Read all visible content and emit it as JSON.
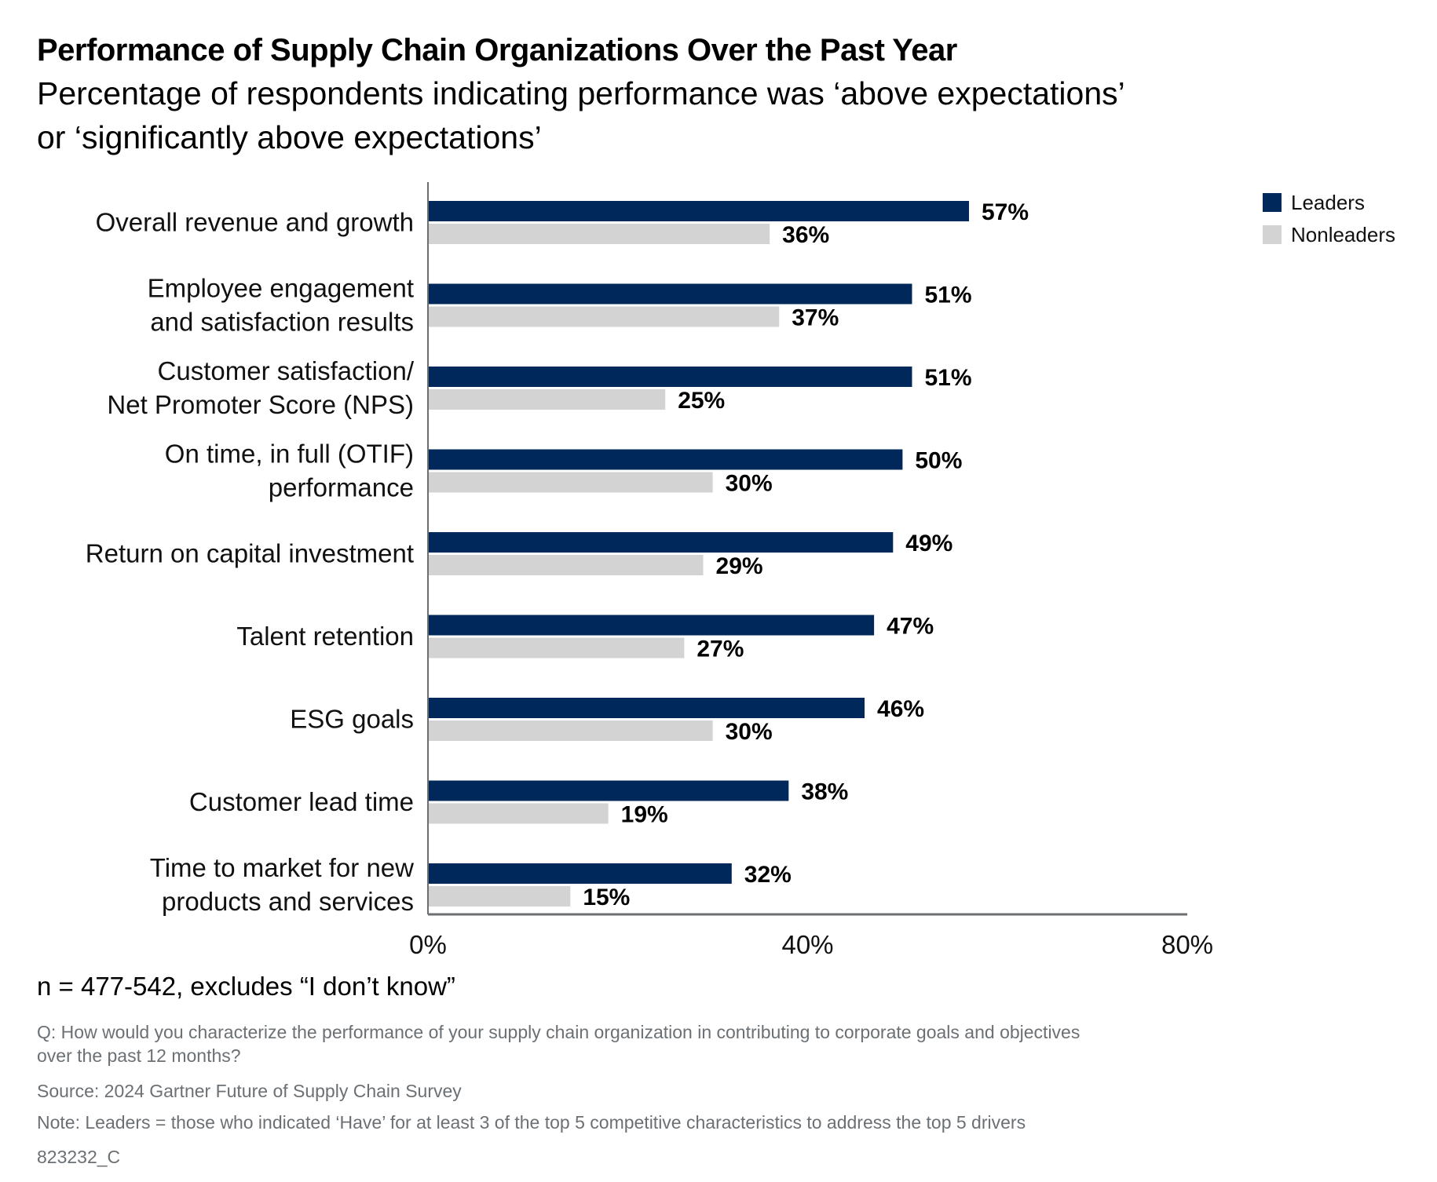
{
  "title": "Performance of Supply Chain Organizations Over the Past Year",
  "subtitle_lines": [
    "Percentage of respondents indicating performance was ‘above expectations’",
    "or ‘significantly above expectations’"
  ],
  "chart_data": {
    "type": "bar",
    "orientation": "horizontal",
    "categories": [
      [
        "Overall revenue and growth"
      ],
      [
        "Employee engagement",
        "and satisfaction results"
      ],
      [
        "Customer satisfaction/",
        "Net Promoter Score (NPS)"
      ],
      [
        "On time, in full (OTIF)",
        "performance"
      ],
      [
        "Return on capital investment"
      ],
      [
        "Talent retention"
      ],
      [
        "ESG goals"
      ],
      [
        "Customer lead time"
      ],
      [
        "Time to market for new",
        "products and services"
      ]
    ],
    "series": [
      {
        "name": "Leaders",
        "color": "#00285a",
        "values": [
          57,
          51,
          51,
          50,
          49,
          47,
          46,
          38,
          32
        ],
        "labels": [
          "57%",
          "51%",
          "51%",
          "50%",
          "49%",
          "47%",
          "46%",
          "38%",
          "32%"
        ]
      },
      {
        "name": "Nonleaders",
        "color": "#d3d3d3",
        "values": [
          36,
          37,
          25,
          30,
          29,
          27,
          30,
          19,
          15
        ],
        "labels": [
          "36%",
          "37%",
          "25%",
          "30%",
          "29%",
          "27%",
          "30%",
          "19%",
          "15%"
        ]
      }
    ],
    "xlim": [
      0,
      80
    ],
    "xticks": [
      0,
      40,
      80
    ],
    "xtick_labels": [
      "0%",
      "40%",
      "80%"
    ],
    "grid": false,
    "legend_position": "top-right"
  },
  "footnotes": {
    "n_note": "n = 477-542, excludes “I don’t know”",
    "question_lines": [
      "Q: How would you characterize the performance of your supply chain organization in contributing to corporate goals and objectives",
      "over the past 12 months?"
    ],
    "source": "Source: 2024 Gartner Future of Supply Chain Survey",
    "note": "Note: Leaders = those who indicated ‘Have’ for at least 3 of the top 5 competitive characteristics to address the top 5 drivers",
    "code": "823232_C"
  }
}
